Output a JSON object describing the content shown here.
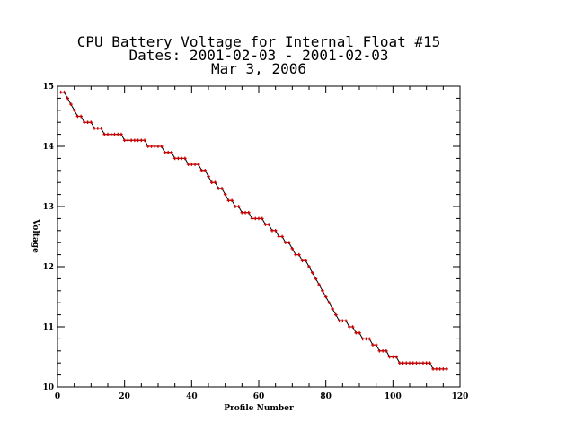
{
  "chart_data": {
    "type": "line",
    "title_lines": [
      "CPU Battery Voltage for Internal Float #15",
      "Dates:  2001-02-03 -  2001-02-03",
      "Mar  3, 2006"
    ],
    "xlabel": "Profile Number",
    "ylabel": "Voltage",
    "xlim": [
      0,
      120
    ],
    "ylim": [
      10,
      15
    ],
    "xticks": [
      "0",
      "20",
      "40",
      "60",
      "80",
      "100",
      "120"
    ],
    "yticks": [
      "10",
      "11",
      "12",
      "13",
      "14",
      "15"
    ],
    "grid": false,
    "line_color": "#000000",
    "marker_color": "#cc0000",
    "series": [
      {
        "x": [
          1,
          2,
          3,
          4,
          5,
          6,
          7,
          8,
          9,
          10,
          11,
          12,
          13,
          14,
          15,
          16,
          17,
          18,
          19,
          20,
          21,
          22,
          23,
          24,
          25,
          26,
          27,
          28,
          29,
          30,
          31,
          32,
          33,
          34,
          35,
          36,
          37,
          38,
          39,
          40,
          41,
          42,
          43,
          44,
          45,
          46,
          47,
          48,
          49,
          50,
          51,
          52,
          53,
          54,
          55,
          56,
          57,
          58,
          59,
          60,
          61,
          62,
          63,
          64,
          65,
          66,
          67,
          68,
          69,
          70,
          71,
          72,
          73,
          74,
          75,
          76,
          77,
          78,
          79,
          80,
          81,
          82,
          83,
          84,
          85,
          86,
          87,
          88,
          89,
          90,
          91,
          92,
          93,
          94,
          95,
          96,
          97,
          98,
          99,
          100,
          101,
          102,
          103,
          104,
          105,
          106,
          107,
          108,
          109,
          110,
          111,
          112,
          113,
          114,
          115,
          116
        ],
        "values": [
          14.9,
          14.9,
          14.8,
          14.7,
          14.6,
          14.5,
          14.5,
          14.4,
          14.4,
          14.4,
          14.3,
          14.3,
          14.3,
          14.2,
          14.2,
          14.2,
          14.2,
          14.2,
          14.2,
          14.1,
          14.1,
          14.1,
          14.1,
          14.1,
          14.1,
          14.1,
          14.0,
          14.0,
          14.0,
          14.0,
          14.0,
          13.9,
          13.9,
          13.9,
          13.8,
          13.8,
          13.8,
          13.8,
          13.7,
          13.7,
          13.7,
          13.7,
          13.6,
          13.6,
          13.5,
          13.4,
          13.4,
          13.3,
          13.3,
          13.2,
          13.1,
          13.1,
          13.0,
          13.0,
          12.9,
          12.9,
          12.9,
          12.8,
          12.8,
          12.8,
          12.8,
          12.7,
          12.7,
          12.6,
          12.6,
          12.5,
          12.5,
          12.4,
          12.4,
          12.3,
          12.2,
          12.2,
          12.1,
          12.1,
          12.0,
          11.9,
          11.8,
          11.7,
          11.6,
          11.5,
          11.4,
          11.3,
          11.2,
          11.1,
          11.1,
          11.1,
          11.0,
          11.0,
          10.9,
          10.9,
          10.8,
          10.8,
          10.8,
          10.7,
          10.7,
          10.6,
          10.6,
          10.6,
          10.5,
          10.5,
          10.5,
          10.4,
          10.4,
          10.4,
          10.4,
          10.4,
          10.4,
          10.4,
          10.4,
          10.4,
          10.4,
          10.3,
          10.3,
          10.3,
          10.3,
          10.3
        ]
      }
    ]
  }
}
